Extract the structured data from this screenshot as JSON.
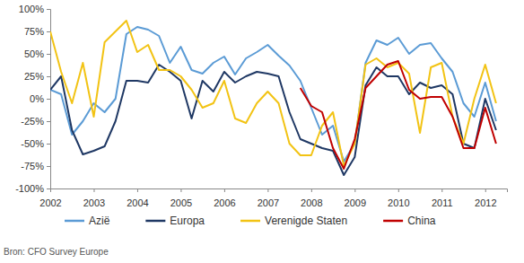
{
  "chart_data": {
    "type": "line",
    "source": "Bron: CFO Survey Europe",
    "x": [
      2002,
      2002.25,
      2002.5,
      2002.75,
      2003,
      2003.25,
      2003.5,
      2003.75,
      2004,
      2004.25,
      2004.5,
      2004.75,
      2005,
      2005.25,
      2005.5,
      2005.75,
      2006,
      2006.25,
      2006.5,
      2006.75,
      2007,
      2007.25,
      2007.5,
      2007.75,
      2008,
      2008.25,
      2008.5,
      2008.75,
      2009,
      2009.25,
      2009.5,
      2009.75,
      2010,
      2010.25,
      2010.5,
      2010.75,
      2011,
      2011.25,
      2011.5,
      2011.75,
      2012,
      2012.25
    ],
    "xlim": [
      2002,
      2012.5
    ],
    "xticks": [
      2002,
      2003,
      2004,
      2005,
      2006,
      2007,
      2008,
      2009,
      2010,
      2011,
      2012
    ],
    "ylim": [
      -100,
      100
    ],
    "yticks": [
      {
        "value": -100,
        "label": "-100%"
      },
      {
        "value": -75,
        "label": "-75%"
      },
      {
        "value": -50,
        "label": "-50%"
      },
      {
        "value": -25,
        "label": "-25%"
      },
      {
        "value": 0,
        "label": "0%"
      },
      {
        "value": 25,
        "label": "25%"
      },
      {
        "value": 50,
        "label": "50%"
      },
      {
        "value": 75,
        "label": "75%"
      },
      {
        "value": 100,
        "label": "100%"
      }
    ],
    "grid": false,
    "legend": "bottom",
    "series": [
      {
        "name": "Azië",
        "color": "#5b9bd5",
        "values": [
          10,
          5,
          -40,
          -25,
          -5,
          -15,
          0,
          72,
          80,
          77,
          70,
          40,
          58,
          32,
          28,
          40,
          47,
          27,
          45,
          52,
          60,
          48,
          37,
          20,
          -10,
          -40,
          -30,
          -70,
          -50,
          40,
          65,
          60,
          68,
          50,
          60,
          62,
          45,
          30,
          -5,
          -20,
          18,
          -25
        ]
      },
      {
        "name": "Europa",
        "color": "#1f3864",
        "values": [
          10,
          25,
          -35,
          -62,
          -58,
          -53,
          -25,
          20,
          20,
          18,
          38,
          30,
          20,
          -22,
          20,
          8,
          30,
          18,
          25,
          30,
          28,
          25,
          -15,
          -45,
          -50,
          -55,
          -58,
          -85,
          -65,
          15,
          35,
          25,
          25,
          5,
          18,
          12,
          15,
          5,
          -50,
          -55,
          0,
          -35
        ]
      },
      {
        "name": "Verenigde Staten",
        "color": "#f2c314",
        "values": [
          75,
          30,
          -5,
          40,
          -20,
          63,
          75,
          87,
          52,
          60,
          32,
          32,
          25,
          10,
          -10,
          -5,
          20,
          -22,
          -27,
          -5,
          8,
          -5,
          -50,
          -63,
          -63,
          -30,
          -15,
          -75,
          -50,
          38,
          45,
          35,
          40,
          28,
          -38,
          35,
          40,
          -20,
          -50,
          0,
          38,
          -5
        ]
      },
      {
        "name": "China",
        "color": "#c00000",
        "values": [
          null,
          null,
          null,
          null,
          null,
          null,
          null,
          null,
          null,
          null,
          null,
          null,
          null,
          null,
          null,
          null,
          null,
          null,
          null,
          null,
          null,
          null,
          null,
          12,
          -8,
          -15,
          -55,
          -78,
          -45,
          12,
          25,
          38,
          42,
          10,
          0,
          2,
          2,
          -20,
          -55,
          -55,
          -10,
          -50
        ]
      }
    ]
  }
}
